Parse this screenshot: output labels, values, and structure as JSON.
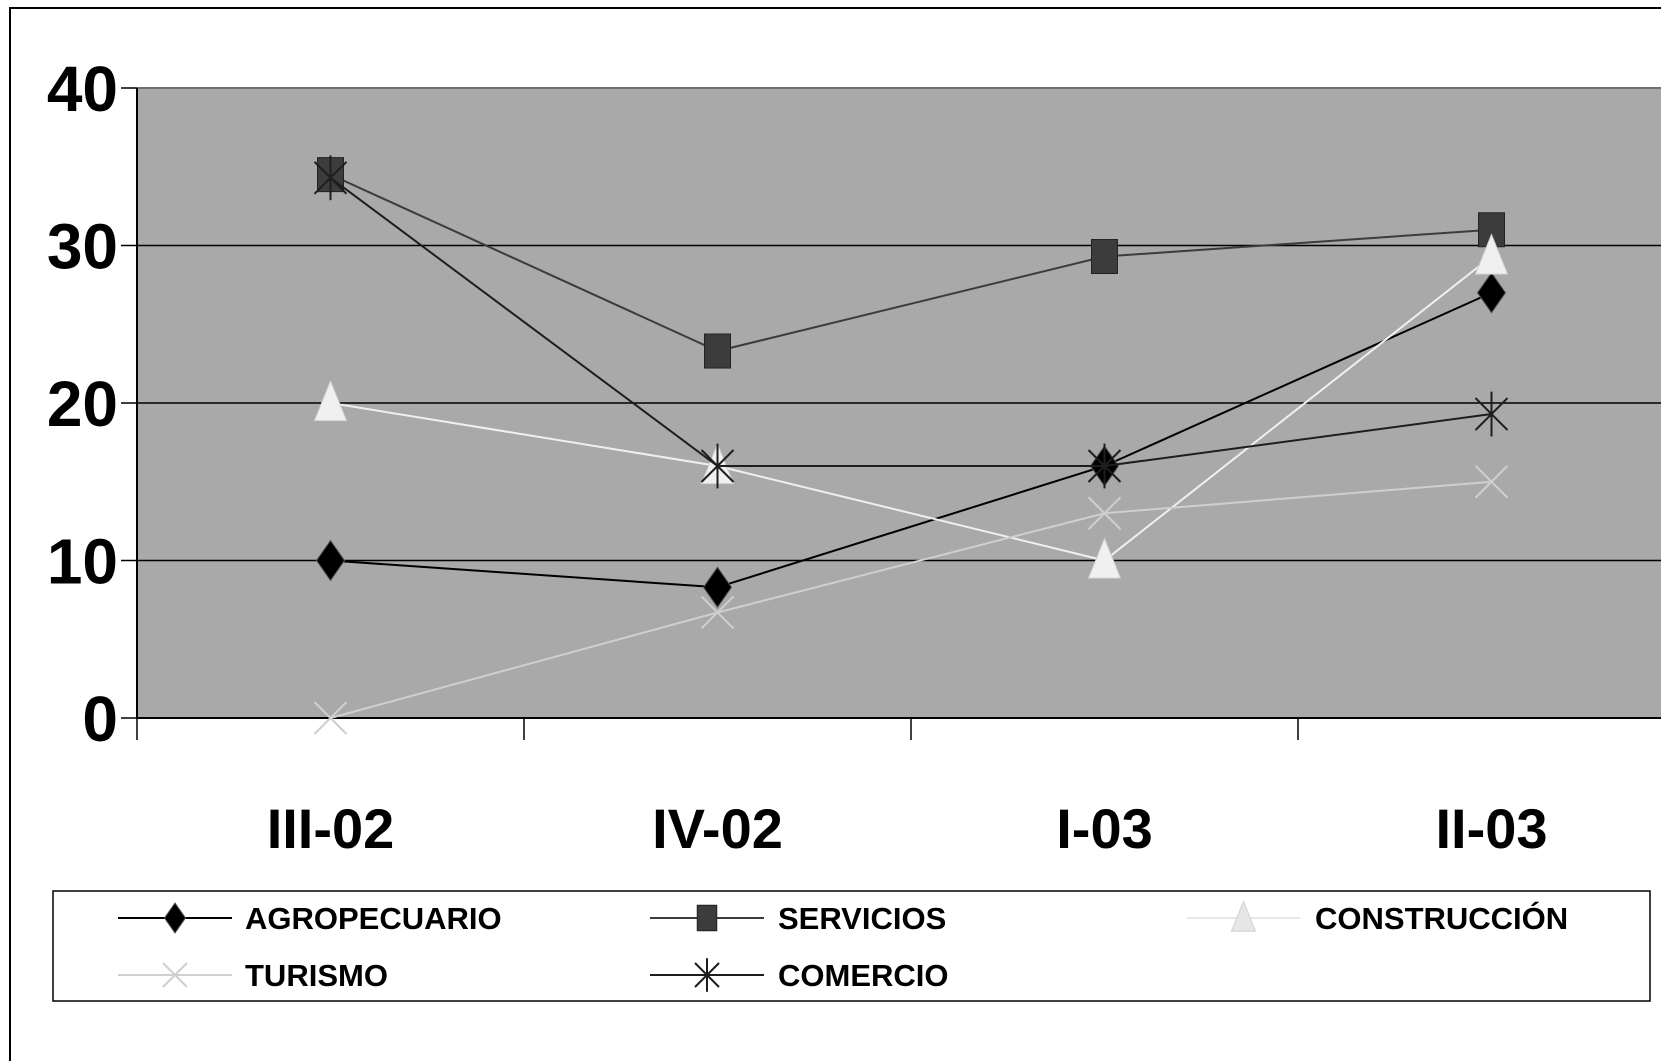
{
  "chart_data": {
    "type": "line",
    "categories": [
      "III-02",
      "IV-02",
      "I-03",
      "II-03"
    ],
    "ylim": [
      0,
      40
    ],
    "yticks": [
      "0",
      "10",
      "20",
      "30",
      "40"
    ],
    "grid": true,
    "legend_position": "bottom",
    "plot_background": "#a9a9a9",
    "series": [
      {
        "name": "AGROPECUARIO",
        "values": [
          10,
          8.3,
          16,
          27
        ],
        "color": "#000000",
        "marker": "diamond"
      },
      {
        "name": "SERVICIOS",
        "values": [
          34.5,
          23.3,
          29.3,
          31
        ],
        "color": "#3c3c3c",
        "marker": "square"
      },
      {
        "name": "CONSTRUCCIÓN",
        "values": [
          20,
          16,
          10,
          29.3
        ],
        "color": "#f0f0f0",
        "marker": "triangle"
      },
      {
        "name": "TURISMO",
        "values": [
          0,
          6.7,
          13,
          15
        ],
        "color": "#cfcfcf",
        "marker": "x"
      },
      {
        "name": "COMERCIO",
        "values": [
          34.3,
          16,
          16,
          19.3
        ],
        "color": "#1e1e1e",
        "marker": "star"
      }
    ]
  }
}
